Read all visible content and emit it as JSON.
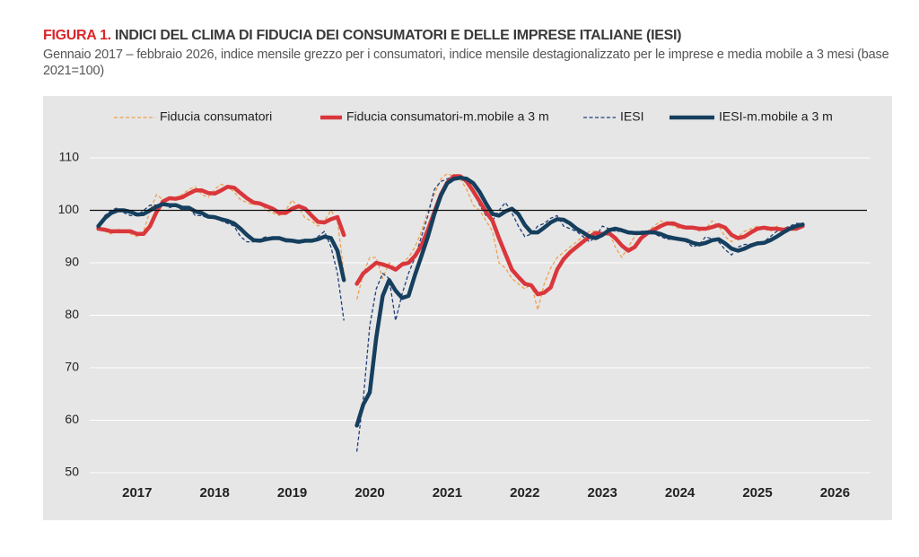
{
  "chart_data": {
    "type": "line",
    "title_label": "FIGURA 1.",
    "title": "INDICI DEL CLIMA DI FIDUCIA DEI CONSUMATORI E DELLE IMPRESE ITALIANE (IESI)",
    "subtitle": "Gennaio 2017 – febbraio 2026, indice mensile grezzo per i consumatori, indice mensile destagionalizzato per le imprese e media mobile a 3 mesi (base 2021=100)",
    "categories": [
      null,
      null,
      null,
      null,
      null,
      null,
      "2017",
      null,
      null,
      null,
      null,
      null,
      null,
      null,
      null,
      null,
      null,
      null,
      "2018",
      null,
      null,
      null,
      null,
      null,
      null,
      null,
      null,
      null,
      null,
      null,
      "2019",
      null,
      null,
      null,
      null,
      null,
      null,
      null,
      null,
      null,
      null,
      null,
      "2020",
      null,
      null,
      null,
      null,
      null,
      null,
      null,
      null,
      null,
      null,
      null,
      "2021",
      null,
      null,
      null,
      null,
      null,
      null,
      null,
      null,
      null,
      null,
      null,
      "2022",
      null,
      null,
      null,
      null,
      null,
      null,
      null,
      null,
      null,
      null,
      null,
      "2023",
      null,
      null,
      null,
      null,
      null,
      null,
      null,
      null,
      null,
      null,
      null,
      "2024",
      null,
      null,
      null,
      null,
      null,
      null,
      null,
      null,
      null,
      null,
      null,
      "2025",
      null,
      null,
      null,
      null,
      null,
      null,
      null,
      null,
      null,
      null,
      null,
      "2026",
      null,
      null,
      null,
      null,
      null
    ],
    "ylim": [
      50,
      110
    ],
    "yticks": [
      50,
      60,
      70,
      80,
      90,
      100,
      110
    ],
    "grid": true,
    "reference_line": 100,
    "legend": "top",
    "series": [
      {
        "name": "Fiducia consumatori",
        "color": "#f0a050",
        "line_style": "dashed",
        "thick": false,
        "values": [
          96.5,
          96,
          95.5,
          96.5,
          96,
          95.5,
          95,
          96,
          100,
          103,
          102,
          102,
          102.5,
          103,
          104,
          104.5,
          103,
          102.5,
          104,
          105,
          104.5,
          103.5,
          102,
          101.5,
          101,
          101.5,
          100,
          99.5,
          99,
          100,
          102,
          100.5,
          98.5,
          98,
          97,
          98,
          100,
          98,
          88,
          null,
          83,
          88,
          91,
          91,
          87,
          90,
          89,
          90,
          91,
          93,
          96,
          100,
          103,
          106,
          107,
          106.5,
          106,
          104,
          101,
          100,
          98,
          96,
          90,
          89,
          87,
          86,
          85,
          86,
          81,
          86,
          89,
          91,
          92,
          93,
          94,
          95,
          96,
          96,
          95,
          96,
          93,
          91,
          93,
          95,
          96,
          96,
          97,
          98,
          97.5,
          97,
          96.5,
          96.5,
          97,
          96,
          96.5,
          98,
          97,
          95,
          94,
          95,
          96,
          96.5,
          97,
          96.5,
          96,
          97,
          96,
          96.5,
          97,
          97.5,
          null,
          null,
          null,
          null,
          null,
          null,
          null,
          null,
          null,
          null
        ]
      },
      {
        "name": "Fiducia consumatori-m.mobile a 3 m",
        "color": "#d9373c",
        "line_style": "solid",
        "thick": true,
        "values": [
          96.5,
          96.3,
          96,
          96,
          96,
          96,
          95.5,
          95.5,
          97,
          99.7,
          101.7,
          102.3,
          102.2,
          102.5,
          103.2,
          103.8,
          103.8,
          103.3,
          103.2,
          103.8,
          104.5,
          104.3,
          103.3,
          102.3,
          101.5,
          101.3,
          100.8,
          100.3,
          99.5,
          99.5,
          100.3,
          100.8,
          100.3,
          99,
          97.8,
          97.7,
          98.3,
          98.7,
          95.3,
          null,
          86,
          88,
          89,
          90,
          89.7,
          89.3,
          88.7,
          89.7,
          90,
          91.3,
          93.3,
          96.3,
          99.7,
          103,
          105.3,
          106.5,
          106.5,
          105.5,
          103.7,
          101.7,
          99.7,
          98,
          94.7,
          91.7,
          88.7,
          87.3,
          86,
          85.7,
          84,
          84.3,
          85.3,
          88.7,
          90.7,
          92,
          93,
          94,
          95,
          95.7,
          95.5,
          95.7,
          94.7,
          93.3,
          92.3,
          93,
          94.7,
          95.7,
          96.3,
          97,
          97.5,
          97.5,
          97,
          96.7,
          96.7,
          96.5,
          96.5,
          96.8,
          97.2,
          96.7,
          95.3,
          94.7,
          95,
          95.8,
          96.5,
          96.7,
          96.5,
          96.5,
          96.3,
          96.5,
          96.5,
          97,
          null,
          null,
          null,
          null,
          null,
          null,
          null,
          null,
          null,
          null
        ]
      },
      {
        "name": "IESI",
        "color": "#1f3f7a",
        "line_style": "dashed",
        "thick": false,
        "values": [
          97,
          99,
          100,
          100.5,
          99.5,
          99,
          99,
          100,
          101,
          101,
          101.5,
          100.5,
          101,
          100,
          100.5,
          99,
          99,
          98.5,
          98.5,
          98,
          97.5,
          97,
          95,
          94,
          94,
          94.5,
          95,
          94.5,
          94.5,
          94,
          94,
          94,
          94.5,
          94,
          95,
          96,
          93,
          88,
          79,
          null,
          54,
          64,
          78,
          85,
          88,
          87,
          79,
          84,
          88,
          91,
          95,
          99,
          104,
          105.5,
          106,
          106.5,
          106,
          105.5,
          104,
          101,
          99,
          98,
          100,
          101.5,
          99.5,
          97,
          95,
          95.5,
          97,
          97.5,
          98.5,
          99,
          97,
          96.5,
          96,
          95,
          94,
          95,
          97,
          96.5,
          96,
          96,
          95.5,
          95.5,
          96,
          96,
          95.5,
          95,
          94.5,
          94.5,
          94.5,
          94,
          93,
          93.5,
          95,
          94.5,
          94,
          92.5,
          91.5,
          93,
          93.5,
          93.5,
          94,
          94,
          95,
          96,
          96.5,
          97,
          97.5,
          97.5,
          null,
          null,
          null,
          null,
          null,
          null,
          null,
          null,
          null,
          null
        ]
      },
      {
        "name": "IESI-m.mobile a 3 m",
        "color": "#163f5e",
        "line_style": "solid",
        "thick": true,
        "values": [
          97,
          98.5,
          99.5,
          100,
          100,
          99.7,
          99.2,
          99.3,
          100,
          100.7,
          101.2,
          101,
          101,
          100.5,
          100.5,
          99.8,
          99.5,
          98.8,
          98.7,
          98.3,
          98,
          97.5,
          96.5,
          95.3,
          94.3,
          94.2,
          94.5,
          94.7,
          94.7,
          94.3,
          94.2,
          94,
          94.2,
          94.2,
          94.5,
          95,
          94.7,
          92.3,
          86.7,
          null,
          59,
          63,
          65.3,
          75.7,
          83.7,
          86.7,
          84.7,
          83.3,
          83.7,
          87.7,
          91.3,
          95,
          99.3,
          102.8,
          105.2,
          106,
          106.2,
          106,
          105.2,
          103.5,
          101.3,
          99.3,
          99,
          99.8,
          100.3,
          99.3,
          97.2,
          95.8,
          95.8,
          96.7,
          97.7,
          98.3,
          98.2,
          97.5,
          96.5,
          95.8,
          95,
          94.7,
          95.3,
          96.2,
          96.5,
          96.2,
          95.8,
          95.7,
          95.7,
          95.8,
          95.8,
          95.5,
          95,
          94.7,
          94.5,
          94.3,
          93.8,
          93.5,
          93.8,
          94.3,
          94.5,
          93.7,
          92.7,
          92.3,
          92.7,
          93.3,
          93.7,
          93.8,
          94.3,
          95,
          95.8,
          96.5,
          97,
          97.3,
          null,
          null,
          null,
          null,
          null,
          null,
          null,
          null,
          null,
          null
        ]
      }
    ]
  }
}
